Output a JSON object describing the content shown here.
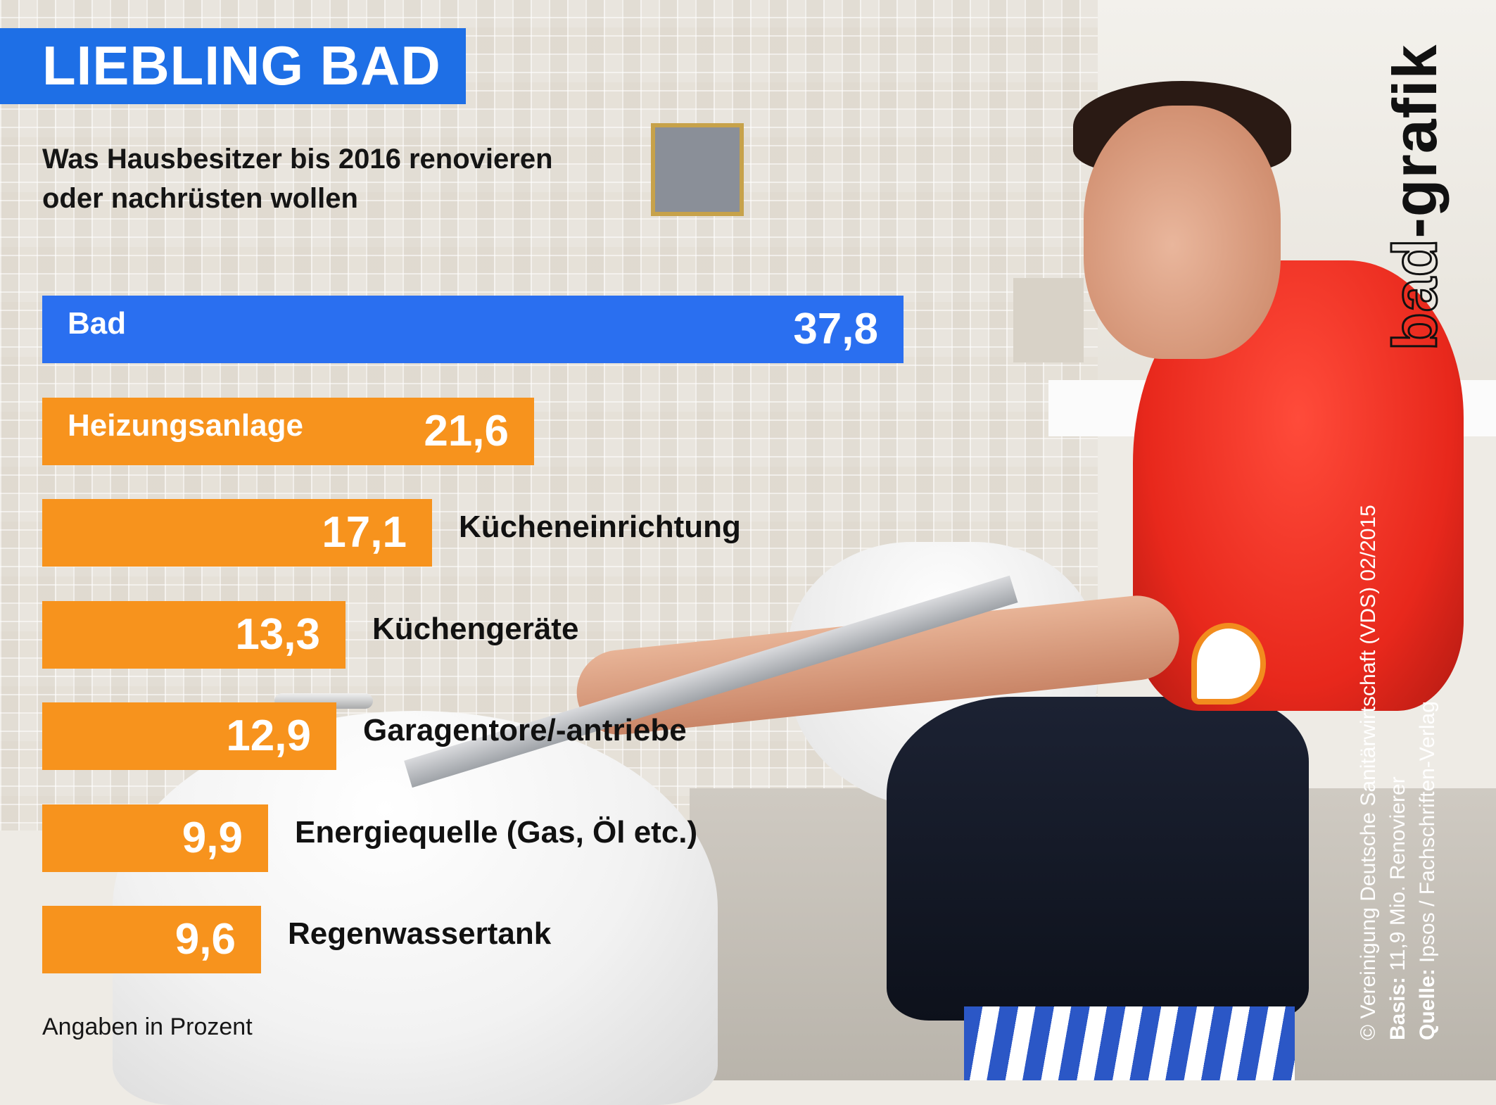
{
  "header": {
    "title": "LIEBLING BAD",
    "subtitle_line1": "Was Hausbesitzer bis 2016 renovieren",
    "subtitle_line2": "oder nachrüsten wollen"
  },
  "footer": {
    "unit_note": "Angaben in Prozent"
  },
  "credits": {
    "logo_bad": "bad",
    "logo_grafik": "-grafik",
    "copyright": "© Vereinigung Deutsche Sanitärwirtschaft (VDS)  02/2015",
    "basis_label": "Basis:",
    "basis_text": " 11,9 Mio. Renovierer",
    "source_label": "Quelle:",
    "source_text": " Ipsos / Fachschriften-Verlag"
  },
  "colors": {
    "title_blue": "#1e6fe6",
    "highlight_bar": "#2a6ff0",
    "orange_bar": "#f7931d"
  },
  "chart_data": {
    "type": "bar",
    "orientation": "horizontal",
    "unit": "Prozent",
    "categories": [
      "Bad",
      "Heizungsanlage",
      "Kücheneinrichtung",
      "Küchengeräte",
      "Garagentore/-antriebe",
      "Energiequelle (Gas, Öl etc.)",
      "Regenwassertank"
    ],
    "value_labels": [
      "37,8",
      "21,6",
      "17,1",
      "13,3",
      "12,9",
      "9,9",
      "9,6"
    ],
    "values": [
      37.8,
      21.6,
      17.1,
      13.3,
      12.9,
      9.9,
      9.6
    ],
    "highlight_index": 0,
    "xlim": [
      0,
      40
    ]
  }
}
